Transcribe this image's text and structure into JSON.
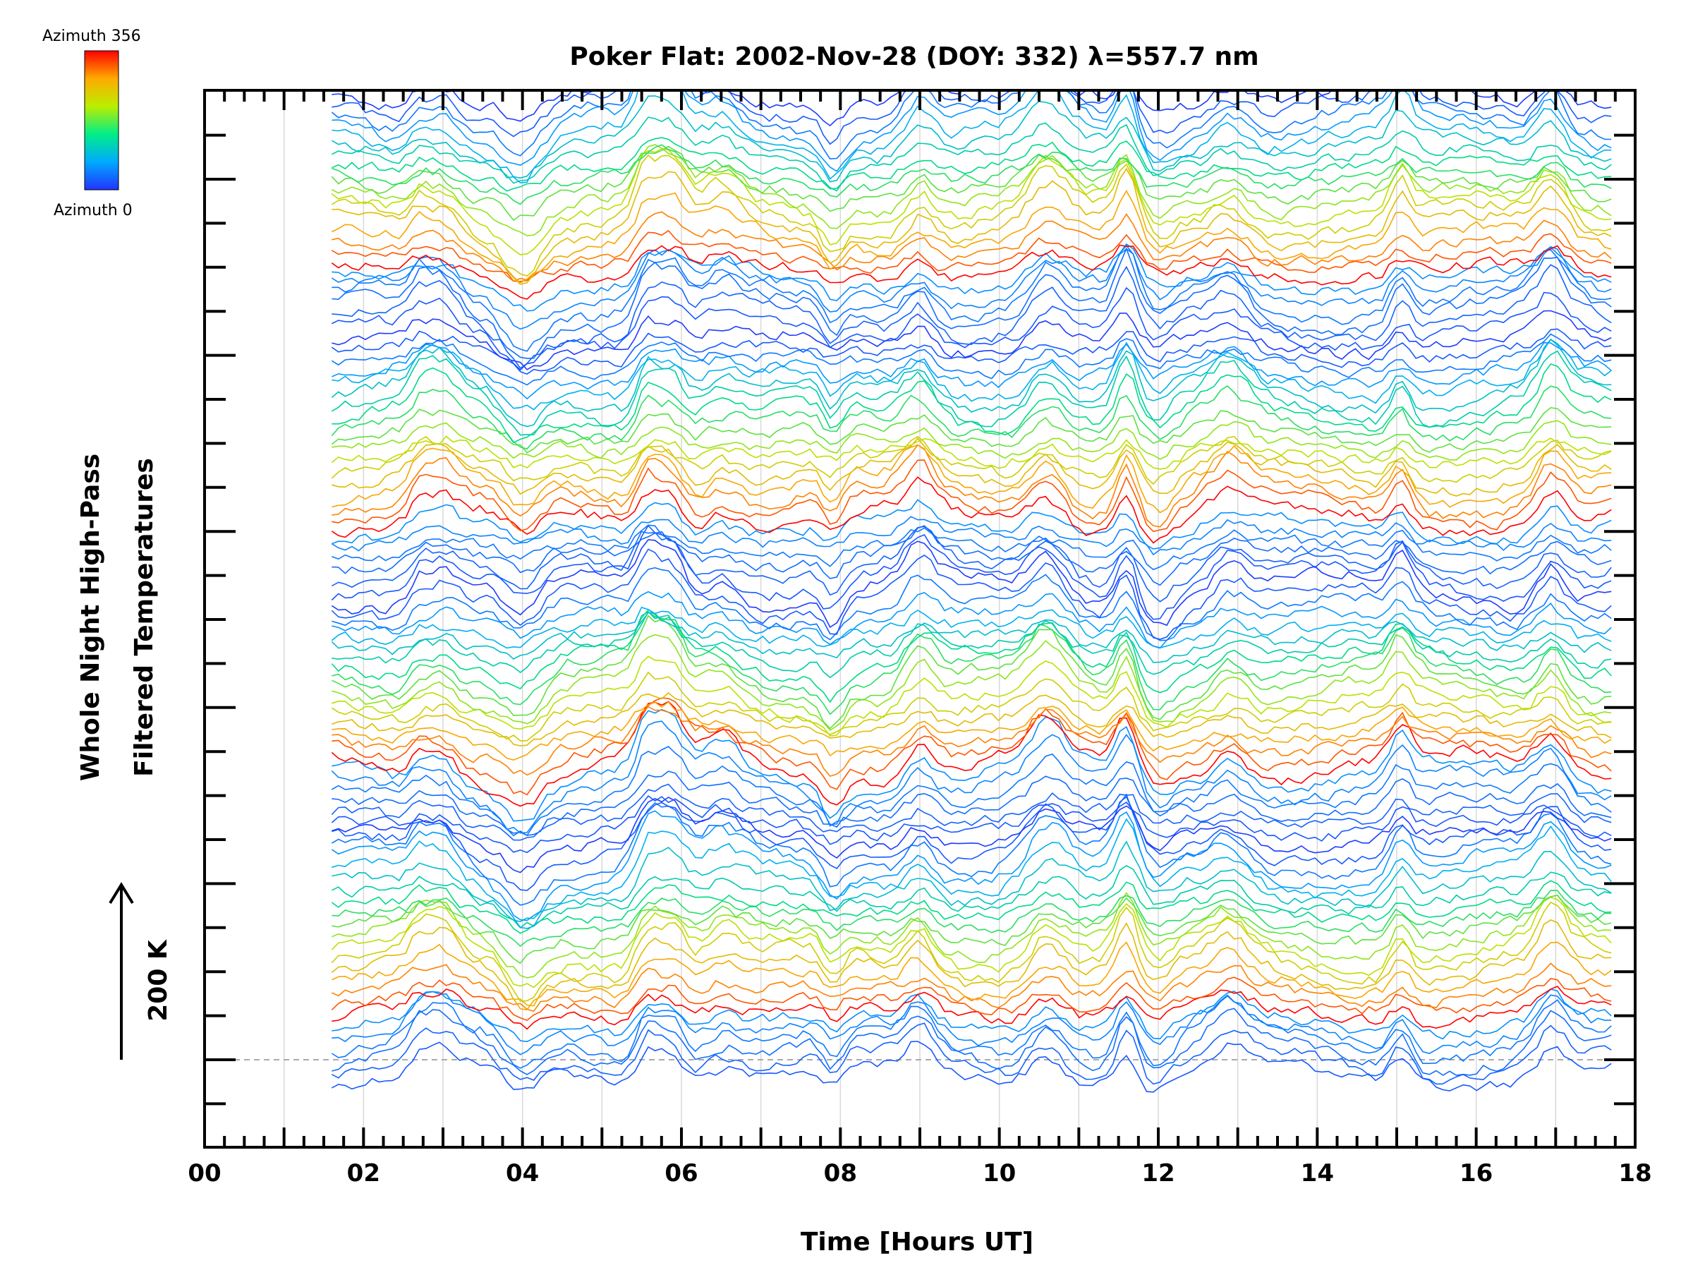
{
  "chart_data": {
    "type": "line",
    "title": "Poker Flat: 2002-Nov-28 (DOY: 332) λ=557.7 nm",
    "xlabel": "Time [Hours UT]",
    "ylabel_lines": [
      "Whole Night High-Pass",
      "Filtered Temperatures"
    ],
    "scale_label": "200 K",
    "xlim": [
      0,
      18
    ],
    "x_ticks": [
      "00",
      "02",
      "04",
      "06",
      "08",
      "10",
      "12",
      "14",
      "16",
      "18"
    ],
    "x_tick_values": [
      0,
      2,
      4,
      6,
      8,
      10,
      12,
      14,
      16,
      18
    ],
    "colorbar": {
      "top_label": "Azimuth 356",
      "bottom_label": "Azimuth 0",
      "colors": [
        "#ff0000",
        "#ff8800",
        "#ffff00",
        "#88ff00",
        "#00ff55",
        "#00ccff",
        "#2244ff"
      ]
    },
    "series_count": 96,
    "azimuth_range": [
      0,
      356
    ],
    "time_range_hours": [
      1.6,
      17.7
    ],
    "grid": "vertical lines at each hour",
    "baseline_dashed": true,
    "event_features_hours": [
      2.7,
      3.0,
      4.0,
      5.55,
      5.85,
      6.5,
      7.9,
      9.0,
      10.6,
      11.6,
      12.0,
      12.9,
      15.05,
      16.95
    ],
    "note": "Stack of azimuth-binned temperature traces, each offset vertically; colour maps azimuth 0 (blue) to 356 (red)"
  }
}
